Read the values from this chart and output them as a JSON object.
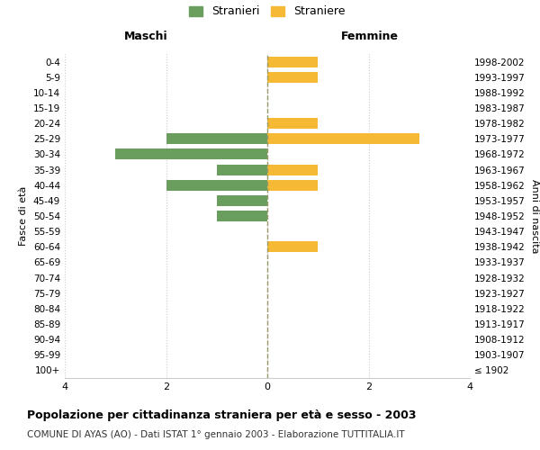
{
  "age_groups": [
    "100+",
    "95-99",
    "90-94",
    "85-89",
    "80-84",
    "75-79",
    "70-74",
    "65-69",
    "60-64",
    "55-59",
    "50-54",
    "45-49",
    "40-44",
    "35-39",
    "30-34",
    "25-29",
    "20-24",
    "15-19",
    "10-14",
    "5-9",
    "0-4"
  ],
  "birth_years": [
    "≤ 1902",
    "1903-1907",
    "1908-1912",
    "1913-1917",
    "1918-1922",
    "1923-1927",
    "1928-1932",
    "1933-1937",
    "1938-1942",
    "1943-1947",
    "1948-1952",
    "1953-1957",
    "1958-1962",
    "1963-1967",
    "1968-1972",
    "1973-1977",
    "1978-1982",
    "1983-1987",
    "1988-1992",
    "1993-1997",
    "1998-2002"
  ],
  "maschi": [
    0,
    0,
    0,
    0,
    0,
    0,
    0,
    0,
    0,
    0,
    1,
    1,
    2,
    1,
    3,
    2,
    0,
    0,
    0,
    0,
    0
  ],
  "femmine": [
    0,
    0,
    0,
    0,
    0,
    0,
    0,
    0,
    1,
    0,
    0,
    0,
    1,
    1,
    0,
    3,
    1,
    0,
    0,
    1,
    1
  ],
  "color_maschi": "#6a9e5f",
  "color_femmine": "#f5b935",
  "xlim": 4,
  "title_main": "Popolazione per cittadinanza straniera per età e sesso - 2003",
  "title_sub": "COMUNE DI AYAS (AO) - Dati ISTAT 1° gennaio 2003 - Elaborazione TUTTITALIA.IT",
  "legend_maschi": "Stranieri",
  "legend_femmine": "Straniere",
  "ylabel_left": "Fasce di età",
  "ylabel_right": "Anni di nascita",
  "xlabel_left": "Maschi",
  "xlabel_right": "Femmine",
  "bg_color": "#ffffff",
  "grid_color": "#cccccc",
  "center_line_color": "#999966"
}
